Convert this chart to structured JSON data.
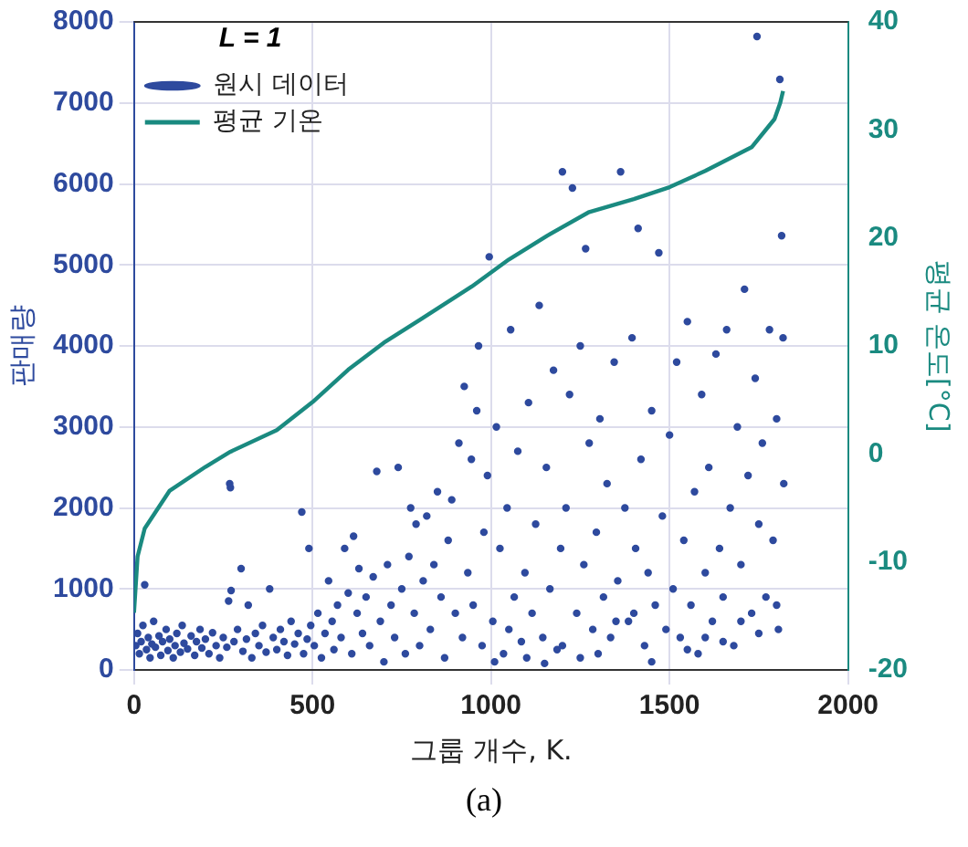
{
  "chart_data": {
    "type": "scatter",
    "xlabel": "그룹 개수, K.",
    "ylabel": "판매량",
    "y2label": "평균 온도[°C]",
    "legend_title": "L = 1",
    "legend": "top left",
    "grid": true,
    "line_style": "solid",
    "xlim": [
      0,
      2000
    ],
    "xticks": [
      0,
      500,
      1000,
      1500,
      2000
    ],
    "ylim": [
      0,
      8000
    ],
    "yticks": [
      0,
      1000,
      2000,
      3000,
      4000,
      5000,
      6000,
      7000,
      8000
    ],
    "y2lim": [
      -20,
      40
    ],
    "y2ticks": [
      -20,
      -10,
      0,
      10,
      20,
      30,
      40
    ],
    "annotations": [
      "(a)"
    ],
    "series": [
      {
        "name": "원시 데이터",
        "marker": "circle",
        "color": "#2e4a9e",
        "x": [
          5,
          10,
          15,
          20,
          25,
          30,
          35,
          40,
          45,
          50,
          55,
          60,
          70,
          75,
          80,
          90,
          95,
          100,
          110,
          115,
          120,
          130,
          135,
          140,
          150,
          160,
          170,
          175,
          185,
          190,
          200,
          210,
          220,
          230,
          240,
          250,
          260,
          265,
          268,
          270,
          272,
          280,
          290,
          300,
          305,
          315,
          320,
          330,
          340,
          350,
          360,
          370,
          380,
          390,
          400,
          410,
          420,
          430,
          440,
          450,
          460,
          470,
          475,
          485,
          490,
          495,
          505,
          515,
          525,
          535,
          545,
          555,
          560,
          570,
          580,
          590,
          600,
          610,
          615,
          625,
          630,
          640,
          650,
          660,
          670,
          680,
          690,
          700,
          710,
          720,
          730,
          740,
          750,
          760,
          770,
          775,
          785,
          790,
          800,
          810,
          820,
          830,
          840,
          850,
          860,
          870,
          880,
          890,
          900,
          910,
          920,
          925,
          935,
          945,
          950,
          960,
          965,
          975,
          980,
          990,
          995,
          1005,
          1015,
          1025,
          1035,
          1045,
          1055,
          1065,
          1075,
          1085,
          1095,
          1105,
          1115,
          1125,
          1135,
          1145,
          1155,
          1165,
          1175,
          1185,
          1195,
          1200,
          1210,
          1220,
          1228,
          1240,
          1250,
          1260,
          1265,
          1275,
          1285,
          1295,
          1305,
          1315,
          1325,
          1335,
          1345,
          1355,
          1363,
          1375,
          1385,
          1395,
          1405,
          1412,
          1420,
          1430,
          1440,
          1450,
          1460,
          1470,
          1480,
          1490,
          1500,
          1510,
          1520,
          1530,
          1540,
          1550,
          1560,
          1570,
          1580,
          1590,
          1600,
          1610,
          1620,
          1630,
          1640,
          1650,
          1660,
          1670,
          1680,
          1690,
          1700,
          1710,
          1720,
          1730,
          1740,
          1745,
          1750,
          1760,
          1770,
          1780,
          1790,
          1800,
          1805,
          1809,
          1814,
          1818,
          1820,
          1010,
          1100,
          1200,
          1300,
          1400,
          1550,
          1650,
          1750,
          1050,
          1150,
          1250,
          1350,
          1450,
          1600,
          1700,
          1800
        ],
        "values": [
          300,
          450,
          200,
          350,
          550,
          1050,
          250,
          400,
          150,
          320,
          600,
          280,
          420,
          180,
          350,
          500,
          240,
          380,
          150,
          300,
          450,
          220,
          550,
          330,
          260,
          420,
          180,
          350,
          500,
          270,
          380,
          200,
          460,
          300,
          150,
          400,
          280,
          850,
          2300,
          2250,
          980,
          350,
          500,
          1250,
          230,
          380,
          800,
          150,
          450,
          300,
          550,
          220,
          1000,
          400,
          250,
          500,
          350,
          180,
          600,
          320,
          450,
          1950,
          200,
          380,
          1500,
          550,
          300,
          700,
          150,
          450,
          1100,
          600,
          250,
          800,
          400,
          1500,
          950,
          200,
          1650,
          700,
          1250,
          450,
          900,
          300,
          1150,
          2450,
          600,
          100,
          1300,
          800,
          400,
          2500,
          1000,
          200,
          1400,
          2000,
          700,
          1800,
          300,
          1100,
          1900,
          500,
          1300,
          2200,
          900,
          150,
          1600,
          2100,
          700,
          2800,
          400,
          3500,
          1200,
          2600,
          800,
          3200,
          4000,
          300,
          1700,
          2400,
          5100,
          600,
          3000,
          1500,
          200,
          2000,
          4200,
          900,
          2700,
          350,
          1200,
          3300,
          700,
          1800,
          4500,
          400,
          2500,
          1000,
          3700,
          250,
          1500,
          6150,
          2000,
          3400,
          5950,
          700,
          4000,
          1300,
          5200,
          2800,
          500,
          1700,
          3100,
          900,
          2300,
          400,
          3800,
          1100,
          6150,
          2000,
          600,
          4100,
          1500,
          5450,
          2600,
          300,
          1200,
          3200,
          800,
          5150,
          1900,
          500,
          2900,
          1000,
          3800,
          400,
          1600,
          4300,
          800,
          2200,
          200,
          3400,
          1200,
          2500,
          600,
          3900,
          1500,
          900,
          4200,
          2000,
          300,
          3000,
          1300,
          4700,
          2400,
          700,
          3600,
          7820,
          1800,
          2800,
          900,
          4200,
          1600,
          3100,
          500,
          7290,
          5360,
          4100,
          2300,
          100,
          150,
          300,
          200,
          700,
          250,
          350,
          450,
          500,
          80,
          150,
          600,
          100,
          400,
          600,
          800
        ]
      },
      {
        "name": "평균 기온",
        "type": "line",
        "marker": "none",
        "axis": "y2",
        "color": "#1a8a80",
        "x": [
          0,
          10,
          30,
          100,
          200,
          270,
          400,
          500,
          600,
          700,
          800,
          946,
          1050,
          1157,
          1275,
          1400,
          1500,
          1600,
          1730,
          1794,
          1810,
          1818
        ],
        "values": [
          -14.7,
          -9.5,
          -6.9,
          -3.4,
          -1.2,
          0.2,
          2.2,
          4.8,
          7.8,
          10.3,
          12.4,
          15.5,
          18,
          20.2,
          22.4,
          23.6,
          24.7,
          26.2,
          28.4,
          31,
          32.5,
          33.6
        ]
      }
    ]
  }
}
